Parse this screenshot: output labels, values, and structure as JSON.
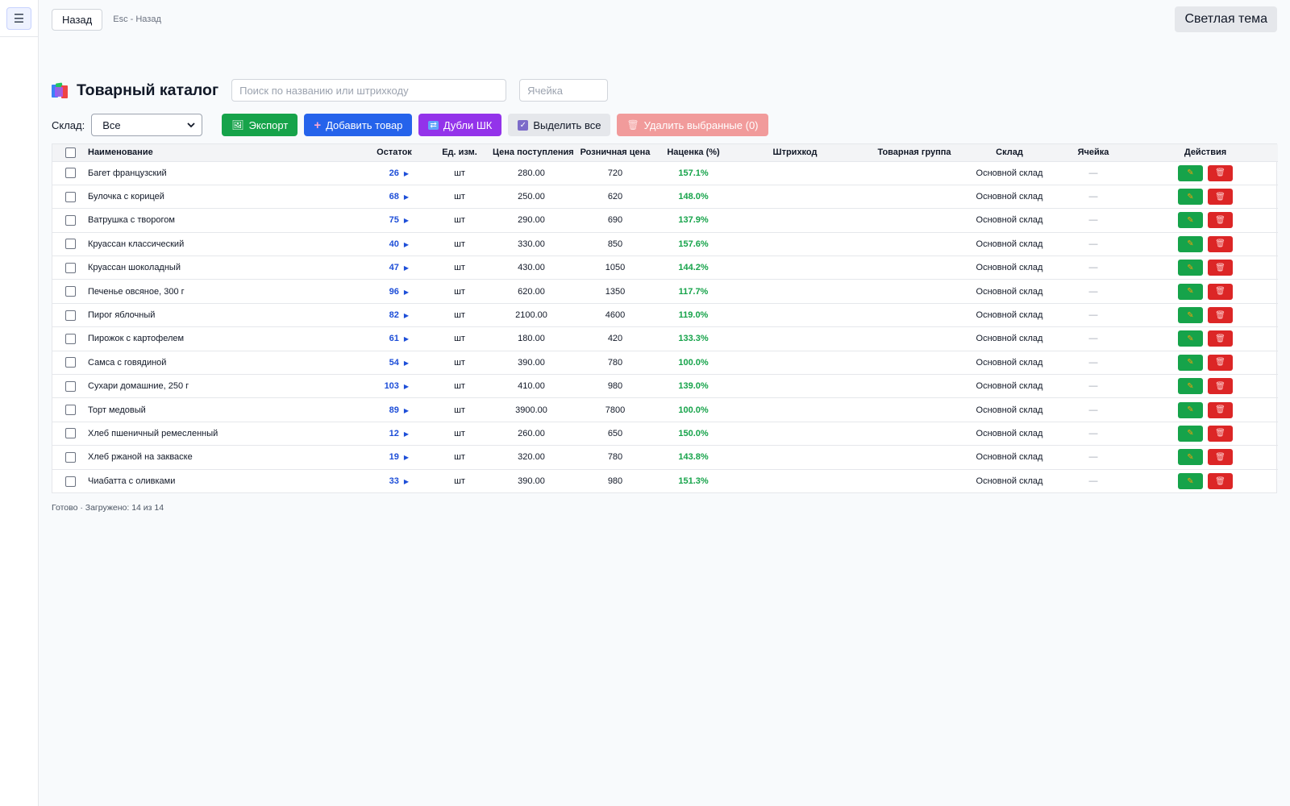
{
  "topbar": {
    "menu_icon": "☰",
    "back_label": "Назад",
    "esc_hint": "Esc - Назад",
    "theme_label": "Светлая тема"
  },
  "page": {
    "title": "Товарный каталог",
    "search_placeholder": "Поиск по названию или штрихкоду",
    "cell_placeholder": "Ячейка"
  },
  "toolbar": {
    "warehouse_label": "Склад:",
    "warehouse_value": "Все",
    "export_label": "Экспорт",
    "add_label": "Добавить товар",
    "dup_label": "Дубли ШК",
    "select_all_label": "Выделить все",
    "delete_selected_label": "Удалить выбранные (0)"
  },
  "table": {
    "columns": [
      "Наименование",
      "Остаток",
      "Ед. изм.",
      "Цена поступления",
      "Розничная цена",
      "Наценка (%)",
      "Штрихкод",
      "Товарная группа",
      "Склад",
      "Ячейка",
      "Действия"
    ],
    "rows": [
      {
        "name": "Багет французский",
        "qty": "26",
        "unit": "шт",
        "cost": "280.00",
        "retail": "720",
        "markup": "157.1%",
        "barcode": "",
        "group": "",
        "warehouse": "Основной склад",
        "cell": "—"
      },
      {
        "name": "Булочка с корицей",
        "qty": "68",
        "unit": "шт",
        "cost": "250.00",
        "retail": "620",
        "markup": "148.0%",
        "barcode": "",
        "group": "",
        "warehouse": "Основной склад",
        "cell": "—"
      },
      {
        "name": "Ватрушка с творогом",
        "qty": "75",
        "unit": "шт",
        "cost": "290.00",
        "retail": "690",
        "markup": "137.9%",
        "barcode": "",
        "group": "",
        "warehouse": "Основной склад",
        "cell": "—"
      },
      {
        "name": "Круассан классический",
        "qty": "40",
        "unit": "шт",
        "cost": "330.00",
        "retail": "850",
        "markup": "157.6%",
        "barcode": "",
        "group": "",
        "warehouse": "Основной склад",
        "cell": "—"
      },
      {
        "name": "Круассан шоколадный",
        "qty": "47",
        "unit": "шт",
        "cost": "430.00",
        "retail": "1050",
        "markup": "144.2%",
        "barcode": "",
        "group": "",
        "warehouse": "Основной склад",
        "cell": "—"
      },
      {
        "name": "Печенье овсяное, 300 г",
        "qty": "96",
        "unit": "шт",
        "cost": "620.00",
        "retail": "1350",
        "markup": "117.7%",
        "barcode": "",
        "group": "",
        "warehouse": "Основной склад",
        "cell": "—"
      },
      {
        "name": "Пирог яблочный",
        "qty": "82",
        "unit": "шт",
        "cost": "2100.00",
        "retail": "4600",
        "markup": "119.0%",
        "barcode": "",
        "group": "",
        "warehouse": "Основной склад",
        "cell": "—"
      },
      {
        "name": "Пирожок с картофелем",
        "qty": "61",
        "unit": "шт",
        "cost": "180.00",
        "retail": "420",
        "markup": "133.3%",
        "barcode": "",
        "group": "",
        "warehouse": "Основной склад",
        "cell": "—"
      },
      {
        "name": "Самса с говядиной",
        "qty": "54",
        "unit": "шт",
        "cost": "390.00",
        "retail": "780",
        "markup": "100.0%",
        "barcode": "",
        "group": "",
        "warehouse": "Основной склад",
        "cell": "—"
      },
      {
        "name": "Сухари домашние, 250 г",
        "qty": "103",
        "unit": "шт",
        "cost": "410.00",
        "retail": "980",
        "markup": "139.0%",
        "barcode": "",
        "group": "",
        "warehouse": "Основной склад",
        "cell": "—"
      },
      {
        "name": "Торт медовый",
        "qty": "89",
        "unit": "шт",
        "cost": "3900.00",
        "retail": "7800",
        "markup": "100.0%",
        "barcode": "",
        "group": "",
        "warehouse": "Основной склад",
        "cell": "—"
      },
      {
        "name": "Хлеб пшеничный ремесленный",
        "qty": "12",
        "unit": "шт",
        "cost": "260.00",
        "retail": "650",
        "markup": "150.0%",
        "barcode": "",
        "group": "",
        "warehouse": "Основной склад",
        "cell": "—"
      },
      {
        "name": "Хлеб ржаной на закваске",
        "qty": "19",
        "unit": "шт",
        "cost": "320.00",
        "retail": "780",
        "markup": "143.8%",
        "barcode": "",
        "group": "",
        "warehouse": "Основной склад",
        "cell": "—"
      },
      {
        "name": "Чиабатта с оливками",
        "qty": "33",
        "unit": "шт",
        "cost": "390.00",
        "retail": "980",
        "markup": "151.3%",
        "barcode": "",
        "group": "",
        "warehouse": "Основной склад",
        "cell": "—"
      }
    ]
  },
  "status": "Готово · Загружено: 14 из 14",
  "colors": {
    "export": "#16a34a",
    "add": "#2563eb",
    "duplicates": "#9333ea",
    "delete_selected": "#f19b9b",
    "markup_text": "#16a34a",
    "qty_text": "#1d4ed8",
    "edit_button": "#16a34a",
    "delete_button": "#dc2626"
  },
  "icons": {
    "menu": "hamburger-icon",
    "title": "books-icon",
    "export": "export-icon",
    "add": "plus-icon",
    "duplicates": "repeat-icon",
    "select_all": "checkbox-checked-icon",
    "delete": "trash-icon",
    "edit": "pencil-icon",
    "qty_expand": "triangle-right-icon"
  }
}
